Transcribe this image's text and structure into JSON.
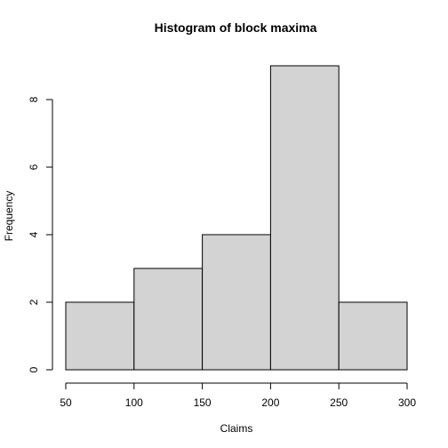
{
  "chart_data": {
    "type": "bar",
    "title": "Histogram of block maxima",
    "xlabel": "Claims",
    "ylabel": "Frequency",
    "bins": [
      [
        50,
        100
      ],
      [
        100,
        150
      ],
      [
        150,
        200
      ],
      [
        200,
        250
      ],
      [
        250,
        300
      ]
    ],
    "values": [
      2,
      3,
      4,
      9,
      2
    ],
    "xlim": [
      50,
      300
    ],
    "ylim": [
      0,
      9
    ],
    "xticks": [
      50,
      100,
      150,
      200,
      250,
      300
    ],
    "yticks": [
      0,
      2,
      4,
      6,
      8
    ],
    "bar_color": "#d3d3d3",
    "grid": false
  }
}
